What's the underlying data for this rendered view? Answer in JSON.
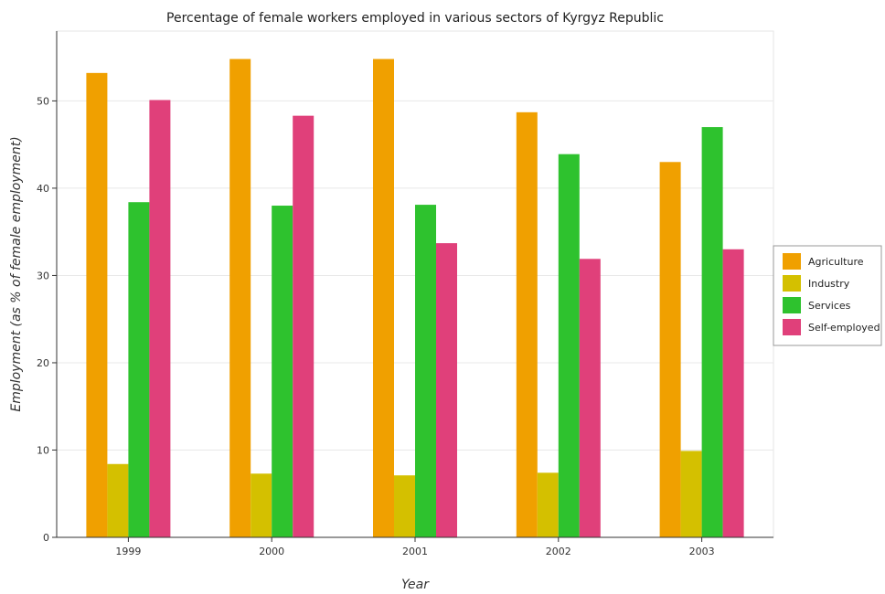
{
  "chart_data": {
    "type": "bar",
    "title": "Percentage of female workers employed in various sectors of Kyrgyz Republic",
    "xlabel": "Year",
    "ylabel": "Employment (as % of female employment)",
    "categories": [
      "1999",
      "2000",
      "2001",
      "2002",
      "2003"
    ],
    "ylim": [
      0,
      58
    ],
    "yticks": [
      0,
      10,
      20,
      30,
      40,
      50
    ],
    "grid": true,
    "legend_position": "right",
    "series": [
      {
        "name": "Agriculture",
        "color": "#f0a000",
        "values": [
          53.2,
          54.8,
          54.8,
          48.7,
          43.0
        ]
      },
      {
        "name": "Industry",
        "color": "#d4c000",
        "values": [
          8.4,
          7.3,
          7.1,
          7.4,
          9.9
        ]
      },
      {
        "name": "Services",
        "color": "#2ec22e",
        "values": [
          38.4,
          38.0,
          38.1,
          43.9,
          47.0
        ]
      },
      {
        "name": "Self-employed",
        "color": "#e0407a",
        "values": [
          50.1,
          48.3,
          33.7,
          31.9,
          33.0
        ]
      }
    ]
  }
}
